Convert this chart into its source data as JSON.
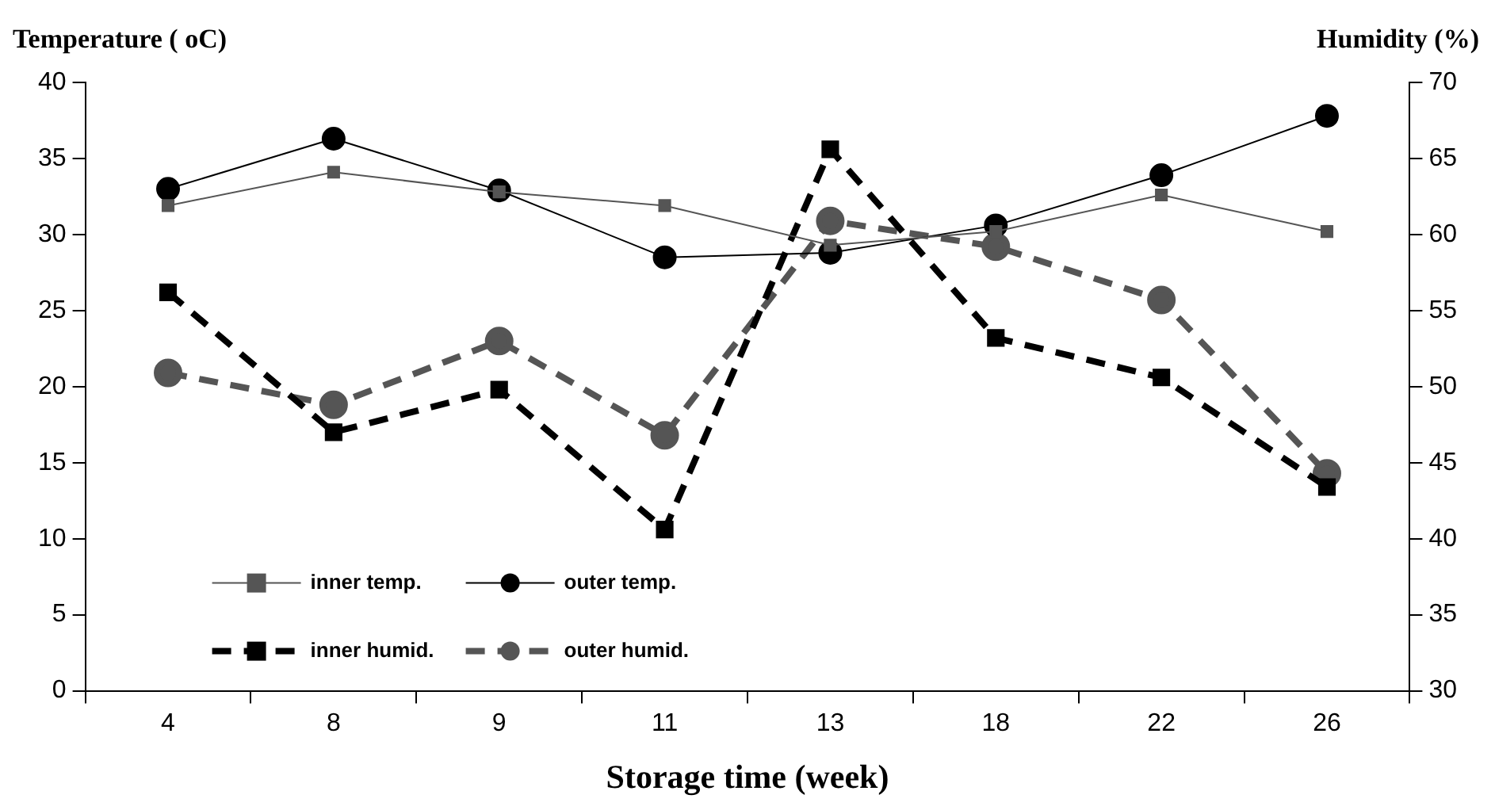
{
  "chart_data": {
    "type": "line",
    "xlabel": "Storage time (week)",
    "ylabel": "Temperature ( oC)",
    "y2label": "Humidity (%)",
    "categories": [
      "4",
      "8",
      "9",
      "11",
      "13",
      "18",
      "22",
      "26"
    ],
    "series": [
      {
        "name": "inner temp.",
        "color": "#555555",
        "marker": "square",
        "line_style": "solid",
        "values": [
          31.9,
          34.1,
          32.8,
          31.9,
          29.3,
          30.2,
          32.6,
          30.2
        ]
      },
      {
        "name": "outer temp.",
        "color": "#000000",
        "marker": "circle",
        "line_style": "solid",
        "values": [
          33,
          36.3,
          32.9,
          28.5,
          28.8,
          30.6,
          33.9,
          37.8
        ]
      },
      {
        "name": "inner humid.",
        "color": "#000000",
        "marker": "square",
        "line_style": "dashed",
        "axis": "y2",
        "values": [
          56.2,
          47,
          49.8,
          40.6,
          65.6,
          53.2,
          50.6,
          43.4
        ]
      },
      {
        "name": "outer humid.",
        "color": "#555555",
        "marker": "circle",
        "line_style": "dashed",
        "axis": "y2",
        "values": [
          50.9,
          48.8,
          53,
          46.8,
          60.9,
          59.2,
          55.7,
          44.3
        ]
      }
    ],
    "ylim": [
      0,
      40
    ],
    "yticks": [
      0,
      5,
      10,
      15,
      20,
      25,
      30,
      35,
      40
    ],
    "y2lim": [
      30,
      70
    ],
    "y2ticks": [
      30,
      35,
      40,
      45,
      50,
      55,
      60,
      65,
      70
    ],
    "grid": false,
    "legend": "bottom left"
  }
}
